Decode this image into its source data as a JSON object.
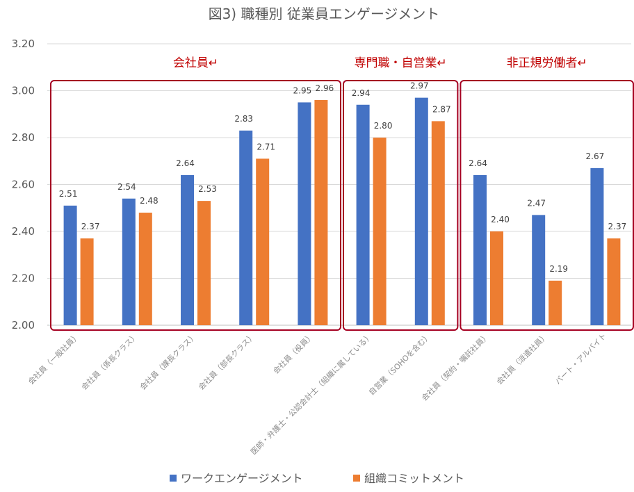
{
  "chart_data": {
    "type": "bar",
    "title": "図3) 職種別 従業員エンゲージメント",
    "ylim": [
      2.0,
      3.2
    ],
    "yticks": [
      "2.00",
      "2.20",
      "2.40",
      "2.60",
      "2.80",
      "3.00",
      "3.20"
    ],
    "grid": true,
    "legend_position": "bottom",
    "categories": [
      "会社員（一般社員）",
      "会社員（係長クラス）",
      "会社員（課長クラス）",
      "会社員（部長クラス）",
      "会社員（役員）",
      "医師・弁護士・公認会計士（組織に属している）",
      "自営業（SOHOを含む）",
      "会社員（契約・嘱託社員）",
      "会社員（派遣社員）",
      "パート・アルバイト"
    ],
    "series": [
      {
        "name": "ワークエンゲージメント",
        "color": "#4472c4",
        "values": [
          2.51,
          2.54,
          2.64,
          2.83,
          2.95,
          2.94,
          2.97,
          2.64,
          2.47,
          2.67
        ],
        "labels": [
          "2.51",
          "2.54",
          "2.64",
          "2.83",
          "2.95",
          "2.94",
          "2.97",
          "2.64",
          "2.47",
          "2.67"
        ]
      },
      {
        "name": "組織コミットメント",
        "color": "#ed7d31",
        "values": [
          2.37,
          2.48,
          2.53,
          2.71,
          2.96,
          2.8,
          2.87,
          2.4,
          2.19,
          2.37
        ],
        "labels": [
          "2.37",
          "2.48",
          "2.53",
          "2.71",
          "2.96",
          "2.80",
          "2.87",
          "2.40",
          "2.19",
          "2.37"
        ]
      }
    ],
    "groups": [
      {
        "label": "会社員↵",
        "from": 0,
        "to": 4
      },
      {
        "label": "専門職・自営業↵",
        "from": 5,
        "to": 6
      },
      {
        "label": "非正規労働者↵",
        "from": 7,
        "to": 9
      }
    ],
    "group_box_color": "#a50021"
  }
}
